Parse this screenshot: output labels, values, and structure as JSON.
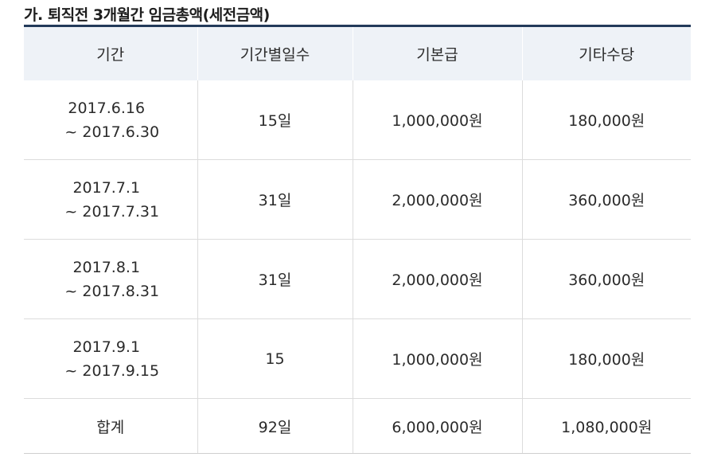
{
  "title": "가. 퇴직전 3개월간 임금총액(세전금액)",
  "headers": [
    "기간",
    "기간별일수",
    "기본급",
    "기타수당"
  ],
  "rows": [
    {
      "start": "2017.6.16",
      "end": "~ 2017.6.30",
      "days": "15일",
      "base": "1,000,000원",
      "other": "180,000원"
    },
    {
      "start": "2017.7.1",
      "end": "~ 2017.7.31",
      "days": "31일",
      "base": "2,000,000원",
      "other": "360,000원"
    },
    {
      "start": "2017.8.1",
      "end": "~ 2017.8.31",
      "days": "31일",
      "base": "2,000,000원",
      "other": "360,000원"
    },
    {
      "start": "2017.9.1",
      "end": "~ 2017.9.15",
      "days": "15",
      "base": "1,000,000원",
      "other": "180,000원"
    }
  ],
  "total": {
    "label": "합계",
    "days": "92일",
    "base": "6,000,000원",
    "other": "1,080,000원"
  }
}
